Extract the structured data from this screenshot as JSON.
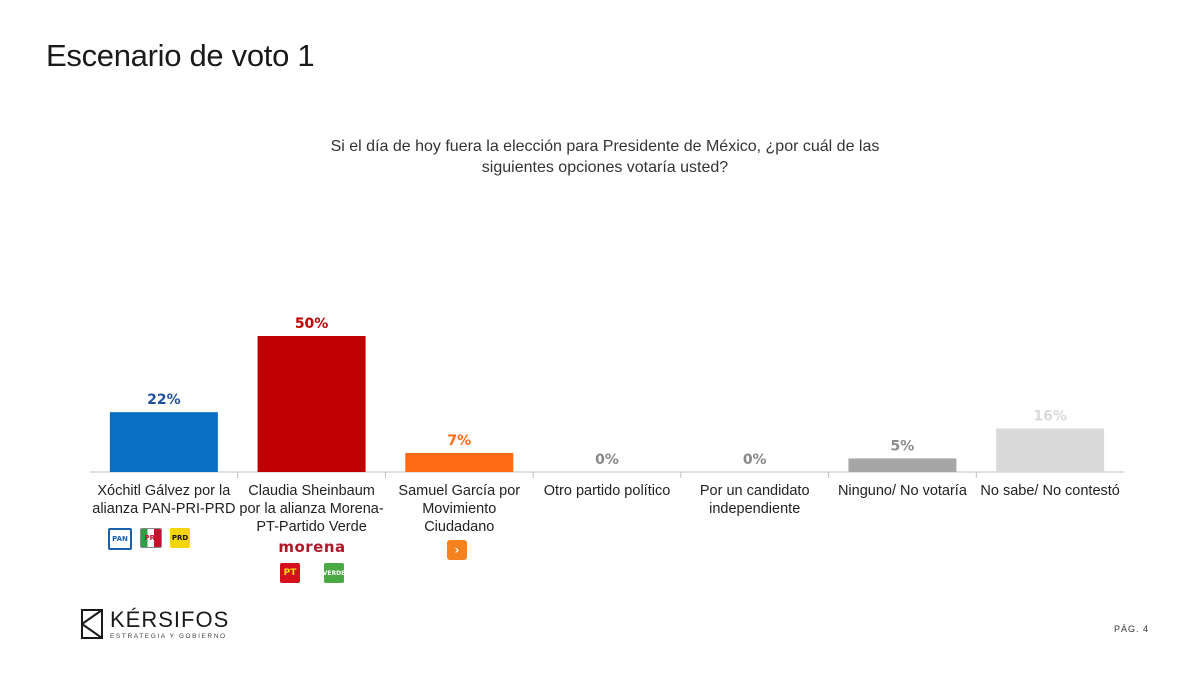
{
  "page": {
    "title": "Escenario de voto 1",
    "question": "Si el día de hoy fuera la elección para Presidente de México, ¿por cuál de las siguientes opciones votaría usted?",
    "page_number": "PÁG.  4"
  },
  "brand": {
    "name": "KÉRSIFOS",
    "tagline": "ESTRATEGIA Y GOBIERNO"
  },
  "logos": {
    "xochitl": [
      "PAN",
      "PRI",
      "PRD"
    ],
    "claudia_wordmark": "morena",
    "claudia": [
      "PT",
      "VERDE"
    ]
  },
  "chart_data": {
    "type": "bar",
    "categories": [
      "Xóchitl Gálvez por la alianza PAN-PRI-PRD",
      "Claudia Sheinbaum por la alianza Morena-PT-Partido Verde",
      "Samuel García por Movimiento Ciudadano",
      "Otro partido político",
      "Por un candidato independiente",
      "Ninguno/ No votaría",
      "No sabe/ No contestó"
    ],
    "values": [
      22,
      50,
      7,
      0,
      0,
      5,
      16
    ],
    "data_labels": [
      "22%",
      "50%",
      "7%",
      "0%",
      "0%",
      "5%",
      "16%"
    ],
    "colors": [
      "#0a6fc2",
      "#c00000",
      "#ff6a13",
      "#bfbfbf",
      "#bfbfbf",
      "#a6a6a6",
      "#d9d9d9"
    ],
    "label_colors": [
      "#1f4e9c",
      "#c00000",
      "#ff6a13",
      "#888888",
      "#888888",
      "#8c8c8c",
      "#d9d9d9"
    ],
    "ylim": [
      0,
      50
    ],
    "grid": false,
    "legend": "none"
  }
}
